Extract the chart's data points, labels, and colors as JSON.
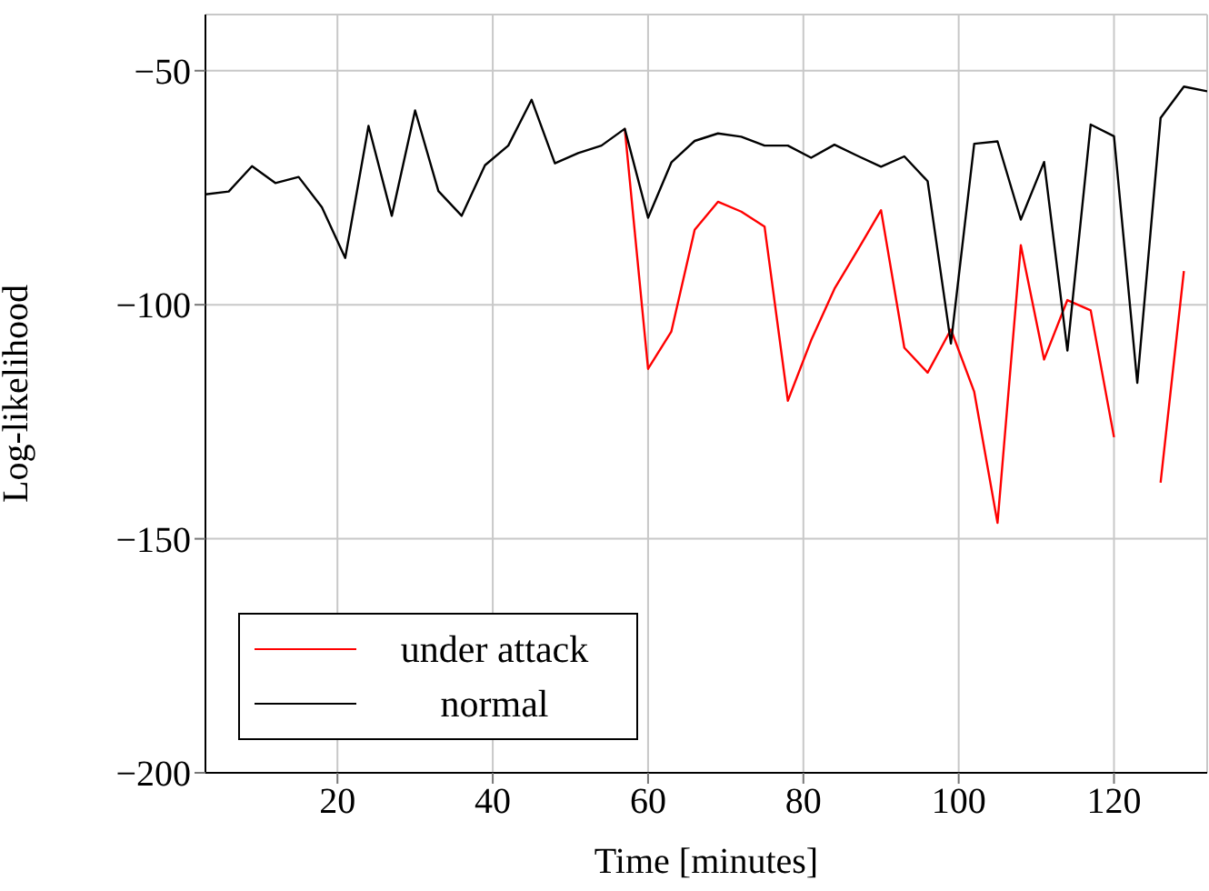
{
  "chart_data": {
    "type": "line",
    "xlabel": "Time [minutes]",
    "ylabel": "Log-likelihood",
    "x": [
      3,
      6,
      9,
      12,
      15,
      18,
      21,
      24,
      27,
      30,
      33,
      36,
      39,
      42,
      45,
      48,
      51,
      54,
      57,
      60,
      63,
      66,
      69,
      72,
      75,
      78,
      81,
      84,
      87,
      90,
      93,
      96,
      99,
      102,
      105,
      108,
      111,
      114,
      117,
      120,
      123,
      126,
      129,
      132
    ],
    "series": [
      {
        "name": "under attack",
        "color": "#ff0000",
        "values": [
          null,
          null,
          null,
          null,
          null,
          null,
          null,
          null,
          null,
          null,
          null,
          null,
          null,
          null,
          null,
          null,
          null,
          null,
          -62.4,
          -113.7,
          -105.7,
          -84,
          -78,
          -80.1,
          -83.3,
          -120.5,
          -107.6,
          -96.6,
          -88.3,
          -79.8,
          -109.2,
          -114.5,
          -105.3,
          -118.6,
          -146.6,
          -87.3,
          -111.7,
          -99,
          -101.2,
          -128.3,
          null,
          -138,
          -92.8,
          null
        ]
      },
      {
        "name": "normal",
        "color": "#000000",
        "values": [
          -76.4,
          -75.8,
          -70.4,
          -74,
          -72.7,
          -79.2,
          -90,
          -61.8,
          -81,
          -58.5,
          -75.7,
          -81,
          -70.2,
          -66,
          -56.2,
          -69.8,
          -67.6,
          -66,
          -62.4,
          -81.4,
          -69.6,
          -65,
          -63.4,
          -64.1,
          -66,
          -66,
          -68.6,
          -65.8,
          -68.2,
          -70.5,
          -68.3,
          -73.6,
          -108.3,
          -65.6,
          -65.1,
          -81.8,
          -69.5,
          -109.8,
          -61.5,
          -64,
          -116.7,
          -60.1,
          -53.4,
          -54.4
        ]
      }
    ],
    "xlim": [
      3,
      132
    ],
    "xticks": [
      20,
      40,
      60,
      80,
      100,
      120
    ],
    "ylim": [
      -200,
      -38
    ],
    "yticks": [
      -50,
      -100,
      -150,
      -200
    ],
    "grid": true,
    "legend": "bottom left",
    "marker": "none",
    "line_style": "solid"
  }
}
